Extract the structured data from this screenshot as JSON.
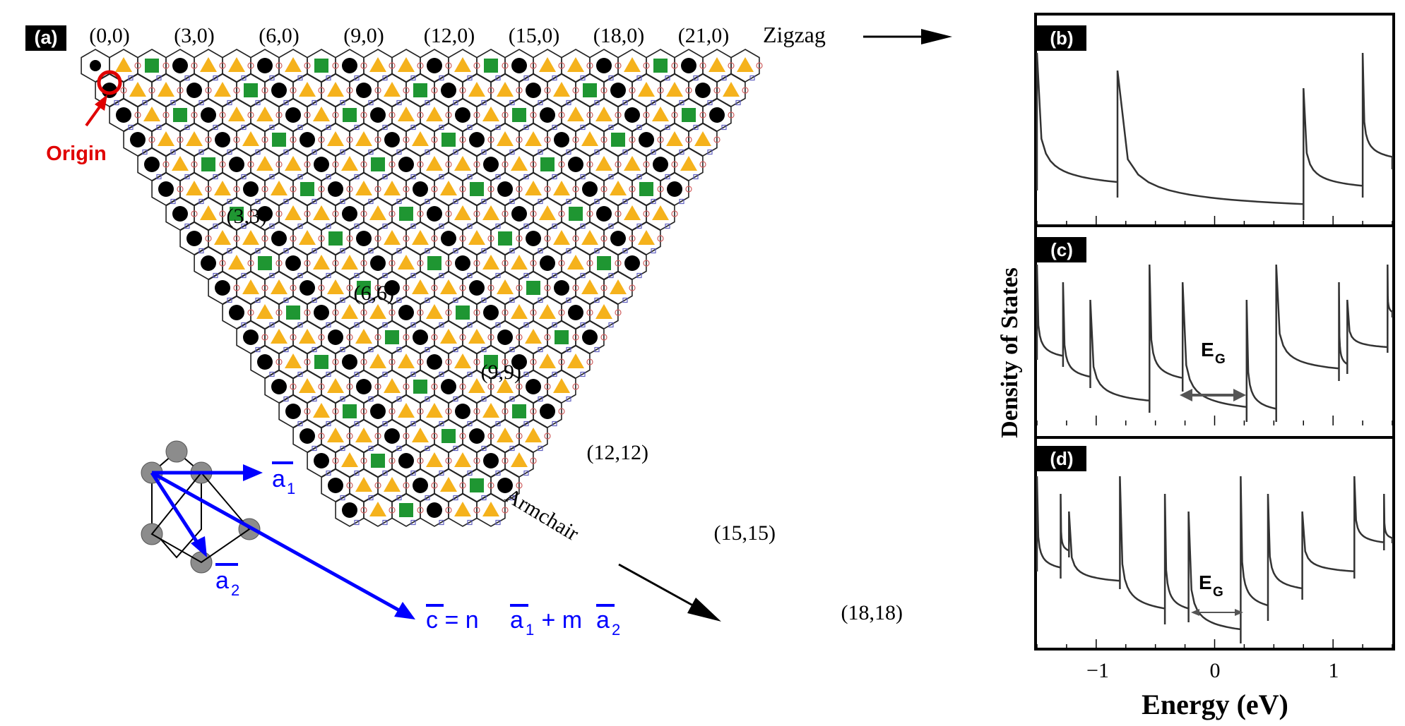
{
  "panel_a": {
    "label": "(a)",
    "zigzag_indices": [
      "(0,0)",
      "(3,0)",
      "(6,0)",
      "(9,0)",
      "(12,0)",
      "(15,0)",
      "(18,0)",
      "(21,0)"
    ],
    "armchair_indices": [
      "(3,3)",
      "(6,6)",
      "(9,9)",
      "(12,12)",
      "(15,15)",
      "(18,18)"
    ],
    "zigzag_label": "Zigzag",
    "armchair_label": "Armchair",
    "origin_label": "Origin",
    "vector_a1": "a",
    "vector_a1_sub": "1",
    "vector_a2": "a",
    "vector_a2_sub": "2",
    "chiral_c": "c",
    "chiral_eq": " = n",
    "chiral_a1": "a",
    "chiral_sub1": "1",
    "chiral_plus": " + m",
    "chiral_a2": "a",
    "chiral_sub2": "2",
    "colors": {
      "accent_blue": "#0000ff",
      "origin_red": "#e00000",
      "metallic": "#000000",
      "semi_triangle": "#f5b21c",
      "semi_square": "#1f9632"
    }
  },
  "dos_panels": {
    "ylabel": "Density of States",
    "xlabel": "Energy (eV)",
    "x_ticks": [
      "−1",
      "0",
      "1"
    ],
    "b_label": "(b)",
    "c_label": "(c)",
    "d_label": "(d)",
    "gap_symbol": "E",
    "gap_sub": "G"
  },
  "chart_data": [
    {
      "type": "line",
      "panel": "(b)",
      "x_range": [
        -1.5,
        1.5
      ],
      "van_hove_singularities_eV": [
        -1.5,
        -0.82,
        0.75,
        1.25
      ],
      "band_gap_eV": 0
    },
    {
      "type": "line",
      "panel": "(c)",
      "x_range": [
        -1.5,
        1.5
      ],
      "van_hove_singularities_eV": [
        -1.28,
        -1.05,
        -0.55,
        -0.27,
        0.27,
        0.52,
        1.05,
        1.12,
        1.46
      ],
      "band_gap_eV": 0.54
    },
    {
      "type": "line",
      "panel": "(d)",
      "x_range": [
        -1.5,
        1.5
      ],
      "van_hove_singularities_eV": [
        -1.3,
        -1.23,
        -0.8,
        -0.42,
        -0.22,
        0.22,
        0.45,
        0.74,
        1.18,
        1.43
      ],
      "band_gap_eV": 0.44
    }
  ]
}
